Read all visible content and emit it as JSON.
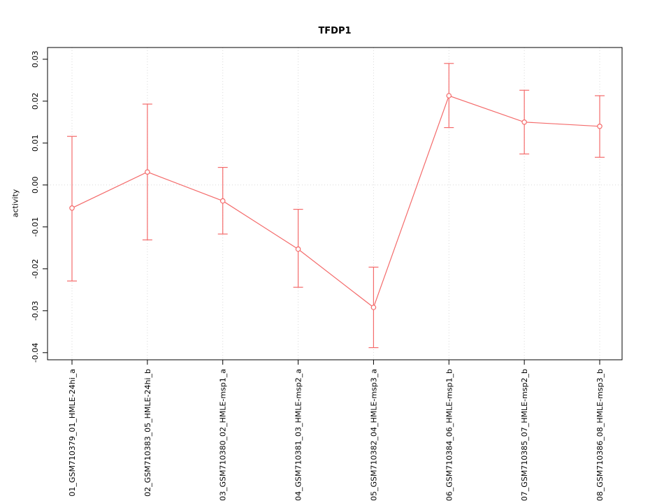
{
  "chart_data": {
    "type": "line",
    "title": "TFDP1",
    "ylabel": "activity",
    "xlabel": "",
    "legend": "none",
    "categories": [
      "01_GSM710379_01_HMLE-24hi_a",
      "02_GSM710383_05_HMLE-24hi_b",
      "03_GSM710380_02_HMLE-msp1_a",
      "04_GSM710381_03_HMLE-msp2_a",
      "05_GSM710382_04_HMLE-msp3_a",
      "06_GSM710384_06_HMLE-msp1_b",
      "07_GSM710385_07_HMLE-msp2_b",
      "08_GSM710386_08_HMLE-msp3_b"
    ],
    "values": [
      -0.0055,
      0.0031,
      -0.0038,
      -0.0153,
      -0.0292,
      0.0213,
      0.015,
      0.014
    ],
    "err_high": [
      0.0116,
      0.0193,
      0.0042,
      -0.0058,
      -0.0196,
      0.029,
      0.0226,
      0.0213
    ],
    "err_low": [
      -0.0229,
      -0.0131,
      -0.0117,
      -0.0244,
      -0.0388,
      0.0137,
      0.0074,
      0.0066
    ],
    "ylim": [
      -0.0417,
      0.0328
    ],
    "ytick_values": [
      -0.04,
      -0.03,
      -0.02,
      -0.01,
      0,
      0.01,
      0.02,
      0.03
    ],
    "ytick_labels": [
      "-0.04",
      "-0.03",
      "-0.02",
      "-0.01",
      "0.00",
      "0.01",
      "0.02",
      "0.03"
    ],
    "grid": {
      "vertical_per_category": true,
      "zero_line": true,
      "style": "dotted"
    },
    "colors": {
      "series": "#f46b6b",
      "point_fill": "#ffffff",
      "grid": "#d9d9d9",
      "axis": "#000000",
      "background": "#ffffff"
    }
  }
}
